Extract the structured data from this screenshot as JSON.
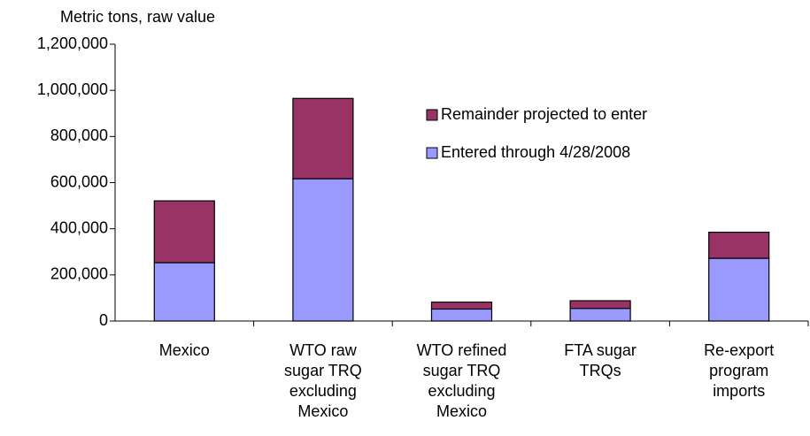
{
  "chart_data": {
    "type": "stacked_bar",
    "y_axis_label": "Metric tons, raw value",
    "categories": [
      "Mexico",
      "WTO raw sugar TRQ excluding Mexico",
      "WTO refined sugar TRQ excluding Mexico",
      "FTA sugar TRQs",
      "Re-export program imports"
    ],
    "series": [
      {
        "name": "Entered through 4/28/2008",
        "color": "#9999ff",
        "values": [
          253000,
          617000,
          52000,
          55000,
          272000
        ]
      },
      {
        "name": "Remainder projected to enter",
        "color": "#993366",
        "values": [
          268000,
          348000,
          30000,
          33000,
          113000
        ]
      }
    ],
    "ylim": [
      0,
      1200000
    ],
    "yticks": [
      0,
      {
        "value": 200000,
        "label": "200,000"
      },
      {
        "value": 400000,
        "label": "400,000"
      },
      {
        "value": 600000,
        "label": "600,000"
      },
      {
        "value": 800000,
        "label": "800,000"
      },
      {
        "value": 1000000,
        "label": "1,000,000"
      },
      {
        "value": 1200000,
        "label": "1,200,000"
      }
    ],
    "legend": "right"
  }
}
